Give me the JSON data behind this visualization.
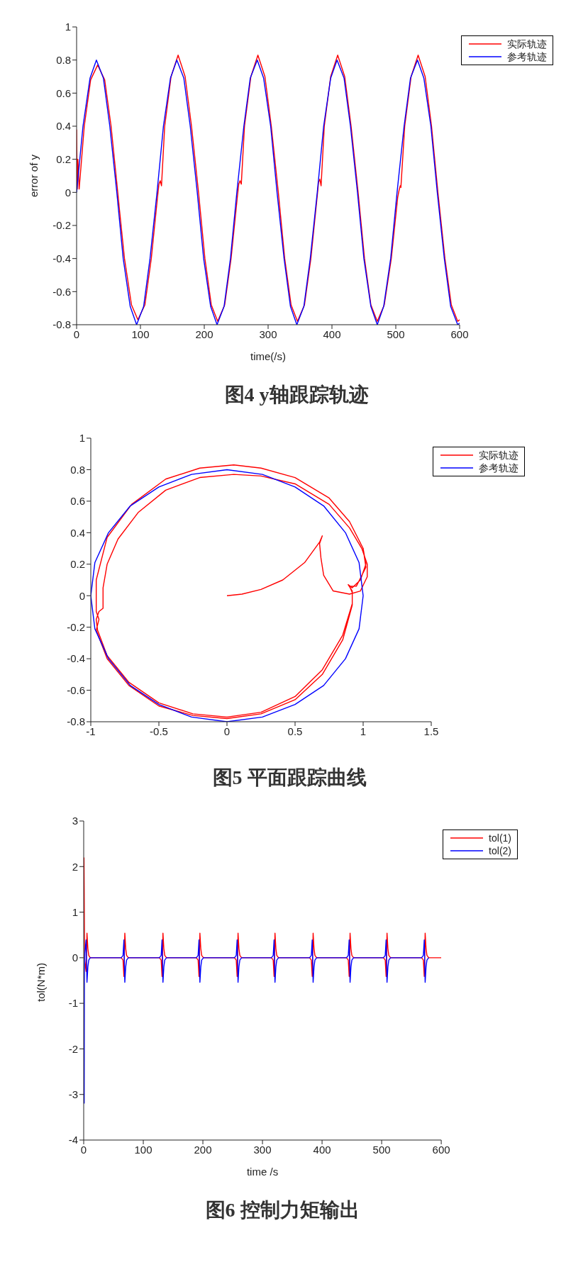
{
  "chart_data": [
    {
      "type": "line",
      "title": "图4 y轴跟踪轨迹",
      "xlabel": "time(/s)",
      "ylabel": "error of y",
      "xlim": [
        0,
        600
      ],
      "xticks": [
        0,
        100,
        200,
        300,
        400,
        500,
        600
      ],
      "ylim": [
        -0.8,
        1
      ],
      "yticks": [
        -0.8,
        -0.6,
        -0.4,
        -0.2,
        0,
        0.2,
        0.4,
        0.6,
        0.8,
        1
      ],
      "legend": "top right",
      "series": [
        {
          "name": "实际轨迹",
          "color": "#ff0000",
          "x": [
            0,
            1,
            2,
            4,
            12,
            22,
            33,
            44,
            54,
            65,
            67,
            75,
            86,
            96,
            107,
            117,
            127,
            129,
            131,
            133,
            138,
            148,
            159,
            170,
            180,
            191,
            201,
            211,
            221,
            232,
            242,
            252,
            254,
            256,
            258,
            263,
            273,
            284,
            295,
            305,
            316,
            326,
            336,
            346,
            357,
            367,
            377,
            379,
            381,
            383,
            388,
            398,
            409,
            420,
            430,
            441,
            451,
            461,
            471,
            482,
            493,
            503,
            505,
            507,
            508,
            514,
            524,
            535,
            546,
            556,
            566,
            577,
            587,
            597,
            600
          ],
          "values": [
            0.38,
            0.02,
            0.2,
            0.02,
            0.4,
            0.68,
            0.77,
            0.68,
            0.4,
            -0.02,
            -0.1,
            -0.4,
            -0.68,
            -0.77,
            -0.68,
            -0.4,
            -0.02,
            0.05,
            0.07,
            0.04,
            0.4,
            0.7,
            0.83,
            0.7,
            0.4,
            0,
            -0.4,
            -0.68,
            -0.78,
            -0.68,
            -0.4,
            -0.02,
            0.05,
            0.07,
            0.05,
            0.4,
            0.7,
            0.83,
            0.7,
            0.4,
            0,
            -0.4,
            -0.68,
            -0.78,
            -0.68,
            -0.4,
            -0.02,
            0.06,
            0.08,
            0.04,
            0.4,
            0.7,
            0.83,
            0.7,
            0.4,
            0,
            -0.4,
            -0.68,
            -0.78,
            -0.68,
            -0.4,
            -0.03,
            0.01,
            0.04,
            0.03,
            0.4,
            0.7,
            0.83,
            0.7,
            0.4,
            0,
            -0.4,
            -0.68,
            -0.78,
            -0.77
          ]
        },
        {
          "name": "参考轨迹",
          "color": "#0000ff",
          "x": [
            0,
            10,
            21,
            31,
            42,
            52,
            63,
            73,
            84,
            94,
            105,
            115,
            126,
            136,
            147,
            157,
            168,
            178,
            189,
            199,
            210,
            220,
            231,
            241,
            251,
            262,
            272,
            283,
            293,
            304,
            314,
            325,
            335,
            345,
            356,
            366,
            377,
            387,
            398,
            408,
            419,
            429,
            440,
            450,
            461,
            471,
            481,
            492,
            502,
            513,
            523,
            534,
            544,
            555,
            565,
            576,
            586,
            597,
            600
          ],
          "values": [
            0,
            0.4,
            0.69,
            0.8,
            0.69,
            0.4,
            0,
            -0.4,
            -0.69,
            -0.8,
            -0.69,
            -0.4,
            0,
            0.4,
            0.69,
            0.8,
            0.69,
            0.4,
            0,
            -0.4,
            -0.69,
            -0.8,
            -0.69,
            -0.4,
            0,
            0.4,
            0.69,
            0.8,
            0.69,
            0.4,
            0,
            -0.4,
            -0.69,
            -0.8,
            -0.69,
            -0.4,
            0,
            0.4,
            0.69,
            0.8,
            0.69,
            0.4,
            0,
            -0.4,
            -0.69,
            -0.8,
            -0.69,
            -0.4,
            0,
            0.4,
            0.69,
            0.8,
            0.69,
            0.4,
            0,
            -0.4,
            -0.69,
            -0.8,
            -0.79
          ]
        }
      ]
    },
    {
      "type": "line",
      "title": "图5 平面跟踪曲线",
      "xlim": [
        -1,
        1.5
      ],
      "xticks": [
        -1,
        -0.5,
        0,
        0.5,
        1,
        1.5
      ],
      "ylim": [
        -0.8,
        1
      ],
      "yticks": [
        -0.8,
        -0.6,
        -0.4,
        -0.2,
        0,
        0.2,
        0.4,
        0.6,
        0.8,
        1
      ],
      "legend": "top right",
      "series": [
        {
          "name": "实际轨迹",
          "color": "#ff0000",
          "x": [
            0,
            0.11,
            0.25,
            0.41,
            0.57,
            0.68,
            0.7,
            0.68,
            0.69,
            0.71,
            0.78,
            0.9,
            0.98,
            1.03,
            1.03,
            0.99,
            0.9,
            0.75,
            0.5,
            0.25,
            0.05,
            -0.2,
            -0.45,
            -0.65,
            -0.8,
            -0.88,
            -0.91,
            -0.91,
            -0.94,
            -0.96,
            -0.95,
            -0.88,
            -0.72,
            -0.5,
            -0.25,
            0,
            0.25,
            0.5,
            0.7,
            0.85,
            0.92,
            0.92,
            0.89,
            0.92,
            0.98,
            1.02,
            1.0,
            0.9,
            0.75,
            0.5,
            0.25,
            0.05,
            -0.2,
            -0.45,
            -0.7,
            -0.88,
            -0.96,
            -0.96,
            -0.94,
            -0.96,
            -0.88,
            -0.72,
            -0.5,
            -0.25,
            0,
            0.25,
            0.5,
            0.7,
            0.85,
            0.92,
            0.92,
            0.9,
            0.95,
            1.02,
            1.0
          ],
          "values": [
            0,
            0.01,
            0.04,
            0.1,
            0.21,
            0.34,
            0.38,
            0.33,
            0.24,
            0.13,
            0.03,
            0.01,
            0.03,
            0.12,
            0.2,
            0.3,
            0.43,
            0.58,
            0.71,
            0.76,
            0.77,
            0.75,
            0.67,
            0.53,
            0.36,
            0.2,
            0.05,
            -0.08,
            -0.1,
            -0.15,
            -0.22,
            -0.38,
            -0.55,
            -0.68,
            -0.75,
            -0.77,
            -0.74,
            -0.64,
            -0.47,
            -0.25,
            -0.05,
            0.03,
            0.07,
            0.05,
            0.1,
            0.2,
            0.3,
            0.47,
            0.62,
            0.75,
            0.81,
            0.83,
            0.81,
            0.74,
            0.58,
            0.37,
            0.1,
            -0.1,
            -0.15,
            -0.22,
            -0.4,
            -0.57,
            -0.7,
            -0.76,
            -0.78,
            -0.75,
            -0.66,
            -0.5,
            -0.28,
            -0.06,
            0.02,
            0.06,
            0.06,
            0.18,
            0.3
          ]
        },
        {
          "name": "参考轨迹",
          "color": "#0000ff",
          "x": [
            0,
            -0.26,
            -0.5,
            -0.71,
            -0.87,
            -0.97,
            -1,
            -0.97,
            -0.87,
            -0.71,
            -0.5,
            -0.26,
            0,
            0.26,
            0.5,
            0.71,
            0.87,
            0.97,
            1,
            0.97,
            0.87,
            0.71,
            0.5,
            0.26,
            0,
            -0.26
          ],
          "values": [
            0.8,
            0.77,
            0.69,
            0.57,
            0.4,
            0.21,
            0,
            -0.21,
            -0.4,
            -0.57,
            -0.69,
            -0.77,
            -0.8,
            -0.77,
            -0.69,
            -0.57,
            -0.4,
            -0.21,
            0,
            0.21,
            0.4,
            0.57,
            0.69,
            0.77,
            0.8,
            0.77
          ]
        }
      ]
    },
    {
      "type": "line",
      "title": "图6 控制力矩输出",
      "xlabel": "time /s",
      "ylabel": "tol(N*m)",
      "xlim": [
        0,
        600
      ],
      "xticks": [
        0,
        100,
        200,
        300,
        400,
        500,
        600
      ],
      "ylim": [
        -4,
        3
      ],
      "yticks": [
        -4,
        -3,
        -2,
        -1,
        0,
        1,
        2,
        3
      ],
      "legend": "top right",
      "series": [
        {
          "name": "tol(1)",
          "color": "#ff0000",
          "x": [
            0.5,
            1.5,
            3,
            4,
            5.5,
            7,
            8.5,
            11,
            63,
            66,
            67.5,
            69,
            70.5,
            72,
            75,
            127,
            130,
            131.5,
            133,
            134.5,
            136,
            139,
            189,
            192,
            193.5,
            195,
            196.5,
            198,
            201,
            253,
            256,
            257.5,
            259,
            260.5,
            262,
            265,
            315,
            318,
            319.5,
            321,
            322.5,
            324,
            327,
            379,
            382,
            383.5,
            385,
            386.5,
            388,
            391,
            441,
            444,
            445.5,
            447,
            448.5,
            450,
            453,
            503,
            506,
            507.5,
            509,
            510.5,
            512,
            515,
            567,
            570,
            571.5,
            573,
            574.5,
            576,
            579,
            600
          ],
          "values": [
            2.2,
            0,
            -0.2,
            -0.3,
            0.54,
            0.2,
            0.05,
            0,
            0,
            -0.05,
            -0.41,
            0.54,
            0.2,
            0.05,
            0,
            0,
            -0.05,
            -0.41,
            0.54,
            0.2,
            0.05,
            0,
            0,
            -0.05,
            -0.41,
            0.54,
            0.2,
            0.05,
            0,
            0,
            -0.05,
            -0.41,
            0.54,
            0.2,
            0.05,
            0,
            0,
            -0.05,
            -0.41,
            0.54,
            0.2,
            0.05,
            0,
            0,
            -0.05,
            -0.41,
            0.54,
            0.2,
            0.05,
            0,
            0,
            -0.05,
            -0.41,
            0.54,
            0.2,
            0.05,
            0,
            0,
            -0.05,
            -0.41,
            0.54,
            0.2,
            0.05,
            0,
            0,
            -0.05,
            -0.41,
            0.54,
            0.2,
            0.05,
            0,
            0
          ]
        },
        {
          "name": "tol(2)",
          "color": "#0000ff",
          "x": [
            0.8,
            1.2,
            2,
            4,
            5.5,
            7,
            8.5,
            11,
            63,
            66,
            67.5,
            69,
            70.5,
            72,
            75,
            127,
            130,
            131.5,
            133,
            134.5,
            136,
            139,
            189,
            192,
            193.5,
            195,
            196.5,
            198,
            201,
            253,
            256,
            257.5,
            259,
            260.5,
            262,
            265,
            315,
            318,
            319.5,
            321,
            322.5,
            324,
            327,
            379,
            382,
            383.5,
            385,
            386.5,
            388,
            391,
            441,
            444,
            445.5,
            447,
            448.5,
            450,
            453,
            503,
            506,
            507.5,
            509,
            510.5,
            512,
            515,
            567,
            570,
            571.5,
            573,
            574.5,
            576,
            579
          ],
          "values": [
            -3.2,
            -0.3,
            0.1,
            0.39,
            -0.54,
            -0.2,
            -0.05,
            0,
            0,
            0.05,
            0.39,
            -0.54,
            -0.2,
            -0.05,
            0,
            0,
            0.05,
            0.39,
            -0.54,
            -0.2,
            -0.05,
            0,
            0,
            0.05,
            0.39,
            -0.54,
            -0.2,
            -0.05,
            0,
            0,
            0.05,
            0.39,
            -0.54,
            -0.2,
            -0.05,
            0,
            0,
            0.05,
            0.39,
            -0.54,
            -0.2,
            -0.05,
            0,
            0,
            0.05,
            0.39,
            -0.54,
            -0.2,
            -0.05,
            0,
            0,
            0.05,
            0.39,
            -0.54,
            -0.2,
            -0.05,
            0,
            0,
            0.05,
            0.39,
            -0.54,
            -0.2,
            -0.05,
            0,
            0,
            0.05,
            0.39,
            -0.54,
            -0.2,
            -0.05,
            0
          ]
        }
      ]
    }
  ]
}
